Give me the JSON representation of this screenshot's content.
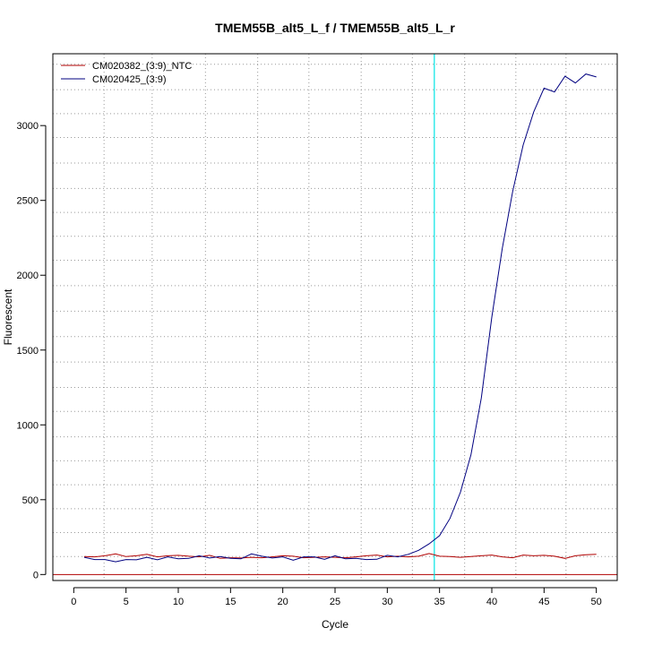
{
  "chart_data": {
    "type": "line",
    "title": "TMEM55B_alt5_L_f / TMEM55B_alt5_L_r",
    "xlabel": "Cycle",
    "ylabel": "Fluorescent",
    "xlim": [
      -2,
      52
    ],
    "ylim": [
      -40,
      3480
    ],
    "x_ticks": [
      0,
      5,
      10,
      15,
      20,
      25,
      30,
      35,
      40,
      45,
      50
    ],
    "y_ticks": [
      0,
      500,
      1000,
      1500,
      2000,
      2500,
      3000
    ],
    "x_grid": [
      2.9,
      7.5,
      12.6,
      17.6,
      22.5,
      27.5,
      32.4,
      37.4,
      42.3,
      47.1
    ],
    "y_grid": [
      -40,
      120,
      280,
      440,
      600,
      760,
      920,
      1090,
      1250,
      1420,
      1590,
      1760,
      1930,
      2100,
      2260,
      2420,
      2580,
      2750,
      2920,
      3080,
      3240,
      3410
    ],
    "grid": true,
    "legend_position": "top-left",
    "threshold": {
      "type": "vertical",
      "x": 34.5,
      "color": "#00e5e5"
    },
    "baseline": {
      "type": "horizontal",
      "y": 0,
      "color": "#b00000"
    },
    "series": [
      {
        "name": "CM020382_(3:9)_NTC",
        "color": "#b00000",
        "x": [
          1,
          2,
          3,
          4,
          5,
          6,
          7,
          8,
          9,
          10,
          11,
          12,
          13,
          14,
          15,
          16,
          17,
          18,
          19,
          20,
          21,
          22,
          23,
          24,
          25,
          26,
          27,
          28,
          29,
          30,
          31,
          32,
          33,
          34,
          35,
          36,
          37,
          38,
          39,
          40,
          41,
          42,
          43,
          44,
          45,
          46,
          47,
          48,
          49,
          50
        ],
        "y": [
          120,
          118,
          125,
          138,
          120,
          125,
          135,
          118,
          125,
          128,
          122,
          118,
          128,
          108,
          112,
          110,
          115,
          112,
          118,
          125,
          122,
          112,
          115,
          118,
          115,
          112,
          118,
          125,
          130,
          118,
          122,
          118,
          122,
          140,
          122,
          120,
          115,
          120,
          125,
          130,
          118,
          112,
          130,
          125,
          128,
          122,
          108,
          125,
          132,
          135
        ]
      },
      {
        "name": "CM020425_(3:9)",
        "color": "#000080",
        "x": [
          1,
          2,
          3,
          4,
          5,
          6,
          7,
          8,
          9,
          10,
          11,
          12,
          13,
          14,
          15,
          16,
          17,
          18,
          19,
          20,
          21,
          22,
          23,
          24,
          25,
          26,
          27,
          28,
          29,
          30,
          31,
          32,
          33,
          34,
          35,
          36,
          37,
          38,
          39,
          40,
          41,
          42,
          43,
          44,
          45,
          46,
          47,
          48,
          49,
          50
        ],
        "y": [
          115,
          100,
          100,
          85,
          100,
          98,
          115,
          98,
          118,
          105,
          108,
          125,
          110,
          120,
          108,
          105,
          138,
          122,
          110,
          118,
          95,
          118,
          118,
          102,
          125,
          105,
          108,
          100,
          102,
          128,
          118,
          135,
          162,
          205,
          260,
          375,
          550,
          800,
          1180,
          1720,
          2180,
          2560,
          2870,
          3090,
          3250,
          3225,
          3330,
          3285,
          3345,
          3325
        ]
      }
    ]
  }
}
